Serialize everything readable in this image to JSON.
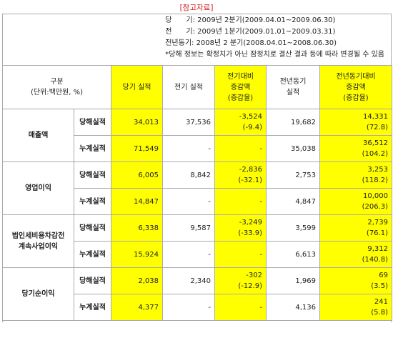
{
  "header": {
    "title": "[참고자료]"
  },
  "notes": [
    "당　　기: 2009년 2분기(2009.04.01~2009.06.30)",
    "전　　기: 2009년 1분기(2009.01.01~2009.03.31)",
    "전년동기: 2008년 2 분기(2008.04.01~2008.06.30)",
    "*당해 정보는 확정치가 아닌 잠정치로 결산 결과 등에 따라 변경될 수 있음"
  ],
  "table": {
    "columns": [
      [
        "구분",
        "(단위:백만원, %)"
      ],
      [
        "당기 실적"
      ],
      [
        "전기 실적"
      ],
      [
        "전기대비",
        "증감액",
        "(증감율)"
      ],
      [
        "전년동기",
        "실적"
      ],
      [
        "전년동기대비",
        "증감액",
        "(증감율)"
      ]
    ],
    "groups": [
      {
        "label": [
          "매출액"
        ],
        "rows": [
          {
            "label": "당해실적",
            "cells": [
              [
                "34,013"
              ],
              [
                "37,536"
              ],
              [
                "-3,524",
                "(-9.4)"
              ],
              [
                "19,682"
              ],
              [
                "14,331",
                "(72.8)"
              ]
            ]
          },
          {
            "label": "누계실적",
            "cells": [
              [
                "71,549"
              ],
              [
                "-"
              ],
              [
                "-"
              ],
              [
                "35,038"
              ],
              [
                "36,512",
                "(104.2)"
              ]
            ]
          }
        ]
      },
      {
        "label": [
          "영업이익"
        ],
        "rows": [
          {
            "label": "당해실적",
            "cells": [
              [
                "6,005"
              ],
              [
                "8,842"
              ],
              [
                "-2,836",
                "(-32.1)"
              ],
              [
                "2,753"
              ],
              [
                "3,253",
                "(118.2)"
              ]
            ]
          },
          {
            "label": "누계실적",
            "cells": [
              [
                "14,847"
              ],
              [
                "-"
              ],
              [
                "-"
              ],
              [
                "4,847"
              ],
              [
                "10,000",
                "(206.3)"
              ]
            ]
          }
        ]
      },
      {
        "label": [
          "법인세비용차감전",
          "계속사업이익"
        ],
        "rows": [
          {
            "label": "당해실적",
            "cells": [
              [
                "6,338"
              ],
              [
                "9,587"
              ],
              [
                "-3,249",
                "(-33.9)"
              ],
              [
                "3,599"
              ],
              [
                "2,739",
                "(76.1)"
              ]
            ]
          },
          {
            "label": "누계실적",
            "cells": [
              [
                "15,924"
              ],
              [
                "-"
              ],
              [
                "-"
              ],
              [
                "6,613"
              ],
              [
                "9,312",
                "(140.8)"
              ]
            ]
          }
        ]
      },
      {
        "label": [
          "당기순이익"
        ],
        "rows": [
          {
            "label": "당해실적",
            "cells": [
              [
                "2,038"
              ],
              [
                "2,340"
              ],
              [
                "-302",
                "(-12.9)"
              ],
              [
                "1,969"
              ],
              [
                "69",
                "(3.5)"
              ]
            ]
          },
          {
            "label": "누계실적",
            "cells": [
              [
                "4,377"
              ],
              [
                "-"
              ],
              [
                "-"
              ],
              [
                "4,136"
              ],
              [
                "241",
                "(5.8)"
              ]
            ]
          }
        ]
      }
    ]
  }
}
